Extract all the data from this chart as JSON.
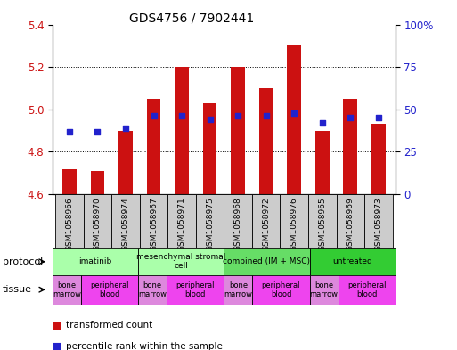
{
  "title": "GDS4756 / 7902441",
  "samples": [
    "GSM1058966",
    "GSM1058970",
    "GSM1058974",
    "GSM1058967",
    "GSM1058971",
    "GSM1058975",
    "GSM1058968",
    "GSM1058972",
    "GSM1058976",
    "GSM1058965",
    "GSM1058969",
    "GSM1058973"
  ],
  "transformed_count": [
    4.72,
    4.71,
    4.9,
    5.05,
    5.2,
    5.03,
    5.2,
    5.1,
    5.3,
    4.9,
    5.05,
    4.93
  ],
  "percentile_rank": [
    37,
    37,
    39,
    46,
    46,
    44,
    46,
    46,
    48,
    42,
    45,
    45
  ],
  "ylim_left": [
    4.6,
    5.4
  ],
  "ylim_right": [
    0,
    100
  ],
  "yticks_left": [
    4.6,
    4.8,
    5.0,
    5.2,
    5.4
  ],
  "yticks_right": [
    0,
    25,
    50,
    75,
    100
  ],
  "bar_color": "#cc1111",
  "dot_color": "#2222cc",
  "bar_bottom": 4.6,
  "protocols": [
    {
      "label": "imatinib",
      "start": 0,
      "end": 3,
      "color": "#aaffaa"
    },
    {
      "label": "mesenchymal stromal\ncell",
      "start": 3,
      "end": 6,
      "color": "#aaffaa"
    },
    {
      "label": "combined (IM + MSC)",
      "start": 6,
      "end": 9,
      "color": "#66dd66"
    },
    {
      "label": "untreated",
      "start": 9,
      "end": 12,
      "color": "#33cc33"
    }
  ],
  "tissues": [
    {
      "label": "bone\nmarrow",
      "start": 0,
      "end": 1,
      "color": "#dd88dd"
    },
    {
      "label": "peripheral\nblood",
      "start": 1,
      "end": 3,
      "color": "#ee44ee"
    },
    {
      "label": "bone\nmarrow",
      "start": 3,
      "end": 4,
      "color": "#dd88dd"
    },
    {
      "label": "peripheral\nblood",
      "start": 4,
      "end": 6,
      "color": "#ee44ee"
    },
    {
      "label": "bone\nmarrow",
      "start": 6,
      "end": 7,
      "color": "#dd88dd"
    },
    {
      "label": "peripheral\nblood",
      "start": 7,
      "end": 9,
      "color": "#ee44ee"
    },
    {
      "label": "bone\nmarrow",
      "start": 9,
      "end": 10,
      "color": "#dd88dd"
    },
    {
      "label": "peripheral\nblood",
      "start": 10,
      "end": 12,
      "color": "#ee44ee"
    }
  ],
  "left_axis_color": "#cc1111",
  "right_axis_color": "#2222cc",
  "legend_entries": [
    "transformed count",
    "percentile rank within the sample"
  ],
  "legend_colors": [
    "#cc1111",
    "#2222cc"
  ],
  "sample_box_color": "#cccccc",
  "grid_dotted_ticks": [
    4.8,
    5.0,
    5.2
  ],
  "protocol_label": "protocol",
  "tissue_label": "tissue"
}
